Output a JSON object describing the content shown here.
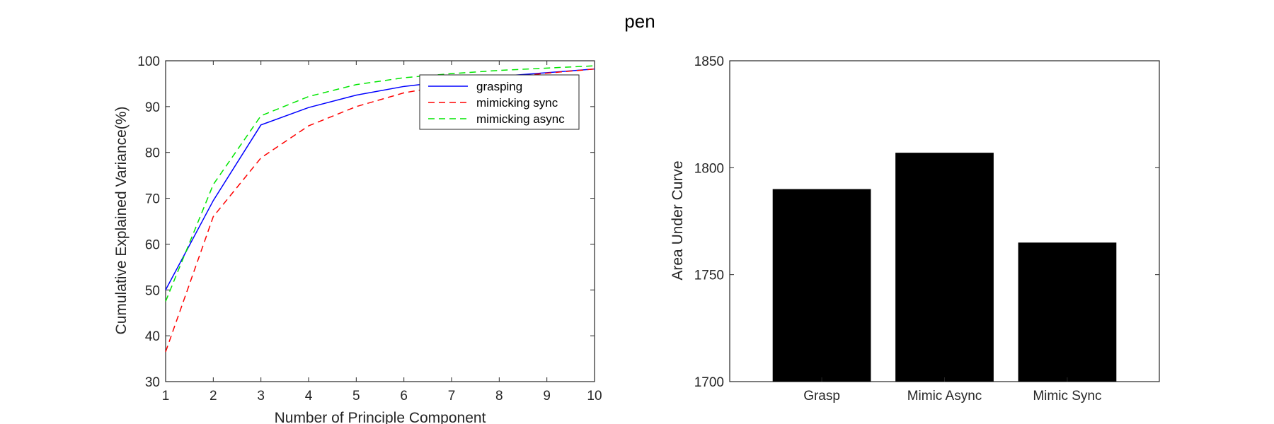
{
  "figure": {
    "title": "pen"
  },
  "chart_data": [
    {
      "type": "line",
      "title": "",
      "xlabel": "Number of Principle Component",
      "ylabel": "Cumulative Explained Variance(%)",
      "x": [
        1,
        2,
        3,
        4,
        5,
        6,
        7,
        8,
        9,
        10
      ],
      "xlim": [
        1,
        10
      ],
      "ylim": [
        30,
        100
      ],
      "xticks": [
        1,
        2,
        3,
        4,
        5,
        6,
        7,
        8,
        9,
        10
      ],
      "yticks": [
        30,
        40,
        50,
        60,
        70,
        80,
        90,
        100
      ],
      "grid": false,
      "legend_position": "top-right",
      "series": [
        {
          "name": "grasping",
          "color": "#0000ff",
          "dash": "solid",
          "values": [
            50.0,
            69.5,
            86.0,
            89.8,
            92.5,
            94.4,
            95.6,
            96.6,
            97.4,
            98.2
          ]
        },
        {
          "name": "mimicking sync",
          "color": "#ff0000",
          "dash": "dashed",
          "values": [
            36.5,
            66.0,
            78.8,
            85.8,
            90.0,
            93.0,
            94.8,
            96.2,
            97.3,
            98.2
          ]
        },
        {
          "name": "mimicking async",
          "color": "#00e600",
          "dash": "dashed",
          "values": [
            47.5,
            73.0,
            88.0,
            92.2,
            94.8,
            96.3,
            97.2,
            97.9,
            98.4,
            98.9
          ]
        }
      ]
    },
    {
      "type": "bar",
      "title": "",
      "xlabel": "",
      "ylabel": "Area Under Curve",
      "categories": [
        "Grasp",
        "Mimic Async",
        "Mimic Sync"
      ],
      "values": [
        1790,
        1807,
        1765
      ],
      "ylim": [
        1700,
        1850
      ],
      "yticks": [
        1700,
        1750,
        1800,
        1850
      ],
      "grid": false,
      "bar_color": "#000000"
    }
  ]
}
